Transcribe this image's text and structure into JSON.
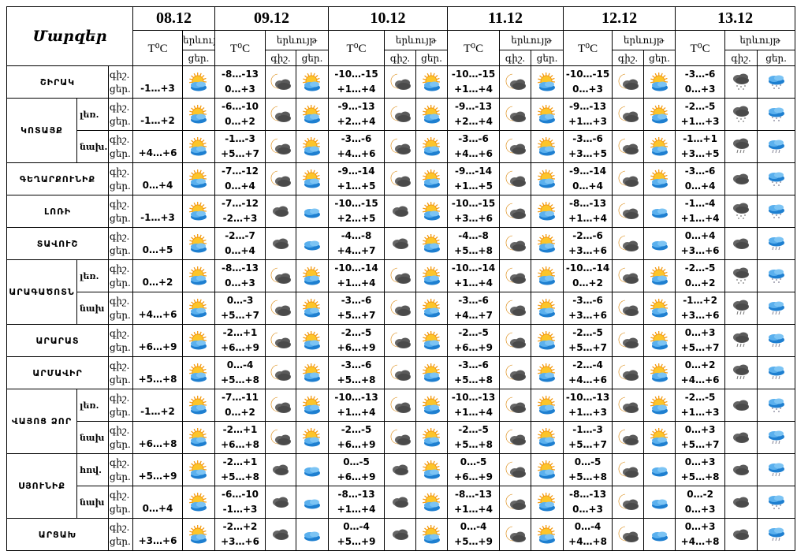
{
  "header": {
    "regions_title": "Մարզեր",
    "temp_label": "T⁰C",
    "phenomenon_label": "երևույթ",
    "night_label": "գիշ.",
    "day_label": "ցեր."
  },
  "colors": {
    "border": "#000000",
    "background": "#ffffff"
  },
  "dates": [
    "08.12",
    "09.12",
    "10.12",
    "11.12",
    "12.12",
    "13.12"
  ],
  "first_day": {
    "date": "08.12",
    "temps": [
      "-1…+3",
      "-1…+2",
      "+4…+6",
      "0…+4",
      "-1…+3",
      "0…+5",
      "0…+2",
      "+4…+6",
      "+6…+9",
      "+5…+8",
      "-1…+2",
      "+6…+8",
      "+5…+9",
      "0…+4",
      "+3…+6"
    ],
    "icon": "sun-behind-cloud-icon"
  },
  "rows": [
    {
      "region": "ՇԻՐԱԿ",
      "sub": ""
    },
    {
      "region": "ԿՈՏԱՅՔ",
      "sub": "լեռ."
    },
    {
      "region": "ԿՈՏԱՅՔ",
      "sub": "նախ."
    },
    {
      "region": "ԳԵՂԱՐՔՈՒՆԻՔ",
      "sub": ""
    },
    {
      "region": "ԼՈՌԻ",
      "sub": ""
    },
    {
      "region": "ՏԱՎՈՒՇ",
      "sub": ""
    },
    {
      "region": "ԱՐԱԳԱԾՈՏՆ",
      "sub": "լեռ."
    },
    {
      "region": "ԱՐԱԳԱԾՈՏՆ",
      "sub": "նախ"
    },
    {
      "region": "ԱՐԱՐԱՏ",
      "sub": ""
    },
    {
      "region": "ԱՐՄԱՎԻՐ",
      "sub": ""
    },
    {
      "region": "ՎԱՅՈՑ ՁՈՐ",
      "sub": "լեռ."
    },
    {
      "region": "ՎԱՅՈՑ ՁՈՐ",
      "sub": "նախ"
    },
    {
      "region": "ՍՅՈՒՆԻՔ",
      "sub": "հով."
    },
    {
      "region": "ՍՅՈՒՆԻՔ",
      "sub": "նախ"
    },
    {
      "region": "ԱՐՑԱԽ",
      "sub": ""
    }
  ],
  "forecast": [
    {
      "date": "09.12",
      "cells": [
        [
          "-8…-13",
          "0…+3",
          "moon",
          "sun"
        ],
        [
          "-6…-10",
          "0…+2",
          "moon",
          "sun"
        ],
        [
          "-1…-3",
          "+5…+7",
          "moon",
          "sun"
        ],
        [
          "-7…-12",
          "0…+4",
          "moon",
          "sun"
        ],
        [
          "-7…-12",
          "-2…+3",
          "dark",
          "blue"
        ],
        [
          "-2…-7",
          "0…+4",
          "dark",
          "blue"
        ],
        [
          "-8…-13",
          "0…+3",
          "moon",
          "sun"
        ],
        [
          "0…-3",
          "+5…+7",
          "moon",
          "sun"
        ],
        [
          "-2…+1",
          "+6…+9",
          "moon",
          "sun"
        ],
        [
          "0…-4",
          "+5…+8",
          "moon",
          "sun"
        ],
        [
          "-7…-11",
          "0…+2",
          "moon",
          "sun"
        ],
        [
          "-2…+1",
          "+6…+8",
          "moon",
          "sun"
        ],
        [
          "-2…+1",
          "+5…+8",
          "dark",
          "blue"
        ],
        [
          "-6…-10",
          "-1…+3",
          "dark",
          "blue"
        ],
        [
          "-2…+2",
          "+3…+6",
          "dark",
          "blue"
        ]
      ]
    },
    {
      "date": "10.12",
      "cells": [
        [
          "-10…-15",
          "+1…+4",
          "moon",
          "sun"
        ],
        [
          "-9…-13",
          "+2…+4",
          "moon",
          "sun"
        ],
        [
          "-3…-6",
          "+4…+6",
          "moon",
          "sun"
        ],
        [
          "-9…-14",
          "+1…+5",
          "moon",
          "sun"
        ],
        [
          "-10…-15",
          "+2…+5",
          "dark",
          "sun"
        ],
        [
          "-4…-8",
          "+4…+7",
          "dark",
          "sun"
        ],
        [
          "-10…-14",
          "+1…+4",
          "moon",
          "sun"
        ],
        [
          "-3…-6",
          "+5…+7",
          "moon",
          "sun"
        ],
        [
          "-2…-5",
          "+6…+9",
          "moon",
          "sun"
        ],
        [
          "-3…-6",
          "+5…+8",
          "moon",
          "sun"
        ],
        [
          "-10…-13",
          "+1…+4",
          "moon",
          "sun"
        ],
        [
          "-2…-5",
          "+6…+9",
          "moon",
          "sun"
        ],
        [
          "0…-5",
          "+6…+9",
          "dark",
          "sun"
        ],
        [
          "-8…-13",
          "+1…+4",
          "dark",
          "sun"
        ],
        [
          "0…-4",
          "+5…+9",
          "dark",
          "sun"
        ]
      ]
    },
    {
      "date": "11.12",
      "cells": [
        [
          "-10…-15",
          "+1…+4",
          "moon",
          "sun"
        ],
        [
          "-9…-13",
          "+2…+4",
          "moon",
          "sun"
        ],
        [
          "-3…-6",
          "+4…+6",
          "moon",
          "sun"
        ],
        [
          "-9…-14",
          "+1…+5",
          "moon",
          "sun"
        ],
        [
          "-10…-15",
          "+3…+6",
          "moon",
          "sun"
        ],
        [
          "-4…-8",
          "+5…+8",
          "moon",
          "sun"
        ],
        [
          "-10…-14",
          "+1…+4",
          "moon",
          "sun"
        ],
        [
          "-3…-6",
          "+4…+7",
          "moon",
          "sun"
        ],
        [
          "-2…-5",
          "+6…+9",
          "moon",
          "sun"
        ],
        [
          "-3…-6",
          "+5…+8",
          "moon",
          "sun"
        ],
        [
          "-10…-13",
          "+1…+4",
          "moon",
          "sun"
        ],
        [
          "-2…-5",
          "+5…+8",
          "moon",
          "sun"
        ],
        [
          "0…-5",
          "+6…+9",
          "moon",
          "sun"
        ],
        [
          "-8…-13",
          "+1…+4",
          "moon",
          "sun"
        ],
        [
          "0…-4",
          "+5…+9",
          "moon",
          "sun"
        ]
      ]
    },
    {
      "date": "12.12",
      "cells": [
        [
          "-10…-15",
          "0…+3",
          "moon",
          "sun"
        ],
        [
          "-9…-13",
          "+1…+3",
          "moon",
          "sun"
        ],
        [
          "-3…-6",
          "+3…+5",
          "moon",
          "sun"
        ],
        [
          "-9…-14",
          "0…+4",
          "moon",
          "sun"
        ],
        [
          "-8…-13",
          "+1…+4",
          "moon",
          "blue"
        ],
        [
          "-2…-6",
          "+3…+6",
          "moon",
          "blue"
        ],
        [
          "-10…-14",
          "0…+2",
          "moon",
          "sun"
        ],
        [
          "-3…-6",
          "+3…+6",
          "moon",
          "sun"
        ],
        [
          "-2…-5",
          "+5…+7",
          "moon",
          "sun"
        ],
        [
          "-2…-4",
          "+4…+6",
          "moon",
          "sun"
        ],
        [
          "-10…-13",
          "+1…+3",
          "moon",
          "sun"
        ],
        [
          "-1…-3",
          "+5…+7",
          "moon",
          "sun"
        ],
        [
          "0…-5",
          "+5…+8",
          "moon",
          "blue"
        ],
        [
          "-8…-13",
          "0…+3",
          "moon",
          "blue"
        ],
        [
          "0…-4",
          "+4…+8",
          "moon",
          "blue"
        ]
      ]
    },
    {
      "date": "13.12",
      "cells": [
        [
          "-3…-6",
          "0…+3",
          "snow-dark",
          "snow-blue"
        ],
        [
          "-2…-5",
          "+1…+3",
          "snow-dark",
          "snow-blue"
        ],
        [
          "-1…+1",
          "+3…+5",
          "rain-dark",
          "rain-blue"
        ],
        [
          "-3…-6",
          "0…+4",
          "dark",
          "snow-blue"
        ],
        [
          "-1…-4",
          "+1…+4",
          "snow-dark",
          "snow-blue"
        ],
        [
          "0…+4",
          "+3…+6",
          "dark",
          "rain-blue"
        ],
        [
          "-2…-5",
          "0…+2",
          "snow-dark",
          "snow-blue"
        ],
        [
          "-1…+2",
          "+3…+6",
          "rain-dark",
          "rain-blue"
        ],
        [
          "0…+3",
          "+5…+7",
          "rain-dark",
          "rain-blue"
        ],
        [
          "0…+2",
          "+4…+6",
          "rain-dark",
          "rain-blue"
        ],
        [
          "-2…-5",
          "+1…+3",
          "dark",
          "snow-blue"
        ],
        [
          "0…+3",
          "+5…+7",
          "dark",
          "rain-blue"
        ],
        [
          "0…+3",
          "+5…+8",
          "dark",
          "rain-blue"
        ],
        [
          "0…-2",
          "0…+3",
          "dark",
          "snow-blue"
        ],
        [
          "0…+3",
          "+4…+8",
          "dark",
          "rain-blue"
        ]
      ]
    }
  ]
}
